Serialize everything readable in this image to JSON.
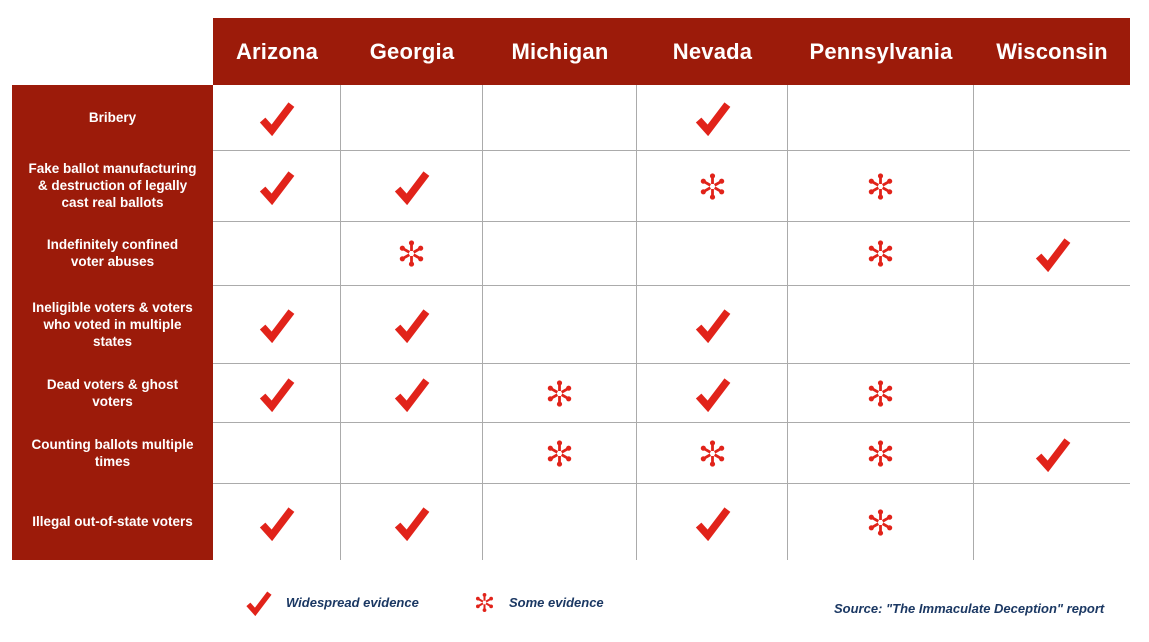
{
  "colors": {
    "header_bg": "#9C1B0A",
    "symbol_red": "#E1231A",
    "legend_text": "#1B3863",
    "grid_line": "#ABABAB",
    "header_text": "#FFFFFF"
  },
  "table": {
    "columns": [
      "Arizona",
      "Georgia",
      "Michigan",
      "Nevada",
      "Pennsylvania",
      "Wisconsin"
    ],
    "rows": [
      {
        "label": "Bribery",
        "cells": [
          "check",
          "",
          "",
          "check",
          "",
          ""
        ]
      },
      {
        "label": "Fake ballot manufacturing\n& destruction of legally\ncast real ballots",
        "cells": [
          "check",
          "check",
          "",
          "star",
          "star",
          ""
        ]
      },
      {
        "label": "Indefinitely confined\nvoter abuses",
        "cells": [
          "",
          "star",
          "",
          "",
          "star",
          "check"
        ]
      },
      {
        "label": "Ineligible voters & voters\nwho voted in multiple\nstates",
        "cells": [
          "check",
          "check",
          "",
          "check",
          "",
          ""
        ]
      },
      {
        "label": "Dead voters & ghost\nvoters",
        "cells": [
          "check",
          "check",
          "star",
          "check",
          "star",
          ""
        ]
      },
      {
        "label": "Counting ballots multiple\ntimes",
        "cells": [
          "",
          "",
          "star",
          "star",
          "star",
          "check"
        ]
      },
      {
        "label": "Illegal out-of-state voters",
        "cells": [
          "check",
          "check",
          "",
          "check",
          "star",
          ""
        ]
      }
    ]
  },
  "legend": {
    "items": [
      {
        "symbol": "check",
        "label": "Widespread evidence"
      },
      {
        "symbol": "star",
        "label": "Some evidence"
      }
    ]
  },
  "source": "Source: \"The Immaculate Deception\" report",
  "chart_data": {
    "type": "table",
    "title": "",
    "columns": [
      "Arizona",
      "Georgia",
      "Michigan",
      "Nevada",
      "Pennsylvania",
      "Wisconsin"
    ],
    "rows": [
      "Bribery",
      "Fake ballot manufacturing & destruction of legally cast real ballots",
      "Indefinitely confined voter abuses",
      "Ineligible voters & voters who voted in multiple states",
      "Dead voters & ghost voters",
      "Counting ballots multiple times",
      "Illegal out-of-state voters"
    ],
    "values": [
      [
        "widespread evidence",
        "",
        "",
        "widespread evidence",
        "",
        ""
      ],
      [
        "widespread evidence",
        "widespread evidence",
        "",
        "some evidence",
        "some evidence",
        ""
      ],
      [
        "",
        "some evidence",
        "",
        "",
        "some evidence",
        "widespread evidence"
      ],
      [
        "widespread evidence",
        "widespread evidence",
        "",
        "widespread evidence",
        "",
        ""
      ],
      [
        "widespread evidence",
        "widespread evidence",
        "some evidence",
        "widespread evidence",
        "some evidence",
        ""
      ],
      [
        "",
        "",
        "some evidence",
        "some evidence",
        "some evidence",
        "widespread evidence"
      ],
      [
        "widespread evidence",
        "widespread evidence",
        "",
        "widespread evidence",
        "some evidence",
        ""
      ]
    ],
    "legend": {
      "check": "Widespread evidence",
      "asterisk": "Some evidence"
    },
    "source": "Source: \"The Immaculate Deception\" report",
    "layout": {
      "grid": "on",
      "legend_position": "bottom"
    }
  }
}
